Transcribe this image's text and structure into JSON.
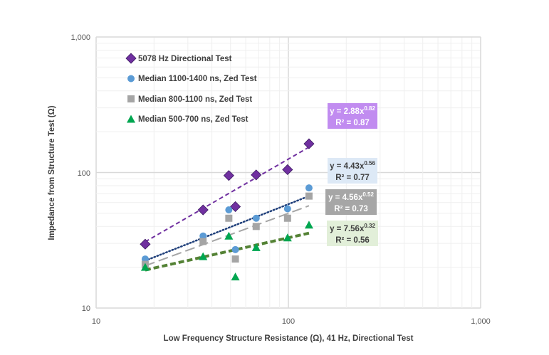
{
  "chart_data": {
    "type": "scatter",
    "title": "",
    "xlabel": "Low Frequency Structure Resistance (Ω), 41 Hz, Directional Test",
    "ylabel": "Impedance from Structure Test (Ω)",
    "xscale": "log",
    "yscale": "log",
    "xlim": [
      10,
      1000
    ],
    "ylim": [
      10,
      1000
    ],
    "xticks": [
      "10",
      "100",
      "1,000"
    ],
    "yticks": [
      "10",
      "100",
      "1,000"
    ],
    "grid": true,
    "legend_position": "top-left",
    "series": [
      {
        "name": "5078 Hz Directional Test",
        "marker": "diamond",
        "color": "#7030a0",
        "x": [
          18,
          36,
          49,
          53,
          68,
          99,
          128
        ],
        "y": [
          29.6,
          53,
          95,
          56,
          96,
          105,
          163
        ],
        "trend": {
          "a": 2.88,
          "b": 0.82,
          "eq": "y = 2.88x",
          "exp": "0.82",
          "r2": "R² = 0.87",
          "line_color": "#7030a0",
          "dash": "6,4",
          "box_bg": "#c18cf0",
          "box_fg": "#ffffff"
        }
      },
      {
        "name": "Median 1100-1400 ns, Zed Test",
        "marker": "circle",
        "color": "#5b9bd5",
        "x": [
          18,
          36,
          49,
          53,
          68,
          99,
          128
        ],
        "y": [
          23,
          34,
          53,
          27,
          46,
          54,
          77
        ],
        "trend": {
          "a": 4.43,
          "b": 0.56,
          "eq": "y = 4.43x",
          "exp": "0.56",
          "r2": "R² = 0.77",
          "line_color": "#1f3f7a",
          "dash": "1.5,3",
          "box_bg": "#dde9f6",
          "box_fg": "#404040"
        }
      },
      {
        "name": "Median 800-1100 ns, Zed Test",
        "marker": "square",
        "color": "#a5a5a5",
        "x": [
          18,
          36,
          49,
          53,
          68,
          99,
          128
        ],
        "y": [
          21,
          31,
          46,
          23,
          40,
          46,
          67
        ],
        "trend": {
          "a": 4.56,
          "b": 0.52,
          "eq": "y = 4.56x",
          "exp": "0.52",
          "r2": "R² = 0.73",
          "line_color": "#a5a5a5",
          "dash": "14,6",
          "box_bg": "#a6a6a6",
          "box_fg": "#ffffff"
        }
      },
      {
        "name": "Median 500-700 ns, Zed Test",
        "marker": "triangle",
        "color": "#00a650",
        "x": [
          18,
          36,
          49,
          53,
          68,
          99,
          128
        ],
        "y": [
          20,
          24,
          34,
          17,
          28,
          33,
          41
        ],
        "trend": {
          "a": 7.56,
          "b": 0.32,
          "eq": "y = 7.56x",
          "exp": "0.32",
          "r2": "R² = 0.56",
          "line_color": "#548235",
          "dash": "8,4",
          "box_bg": "#e2efd9",
          "box_fg": "#404040"
        }
      }
    ]
  }
}
